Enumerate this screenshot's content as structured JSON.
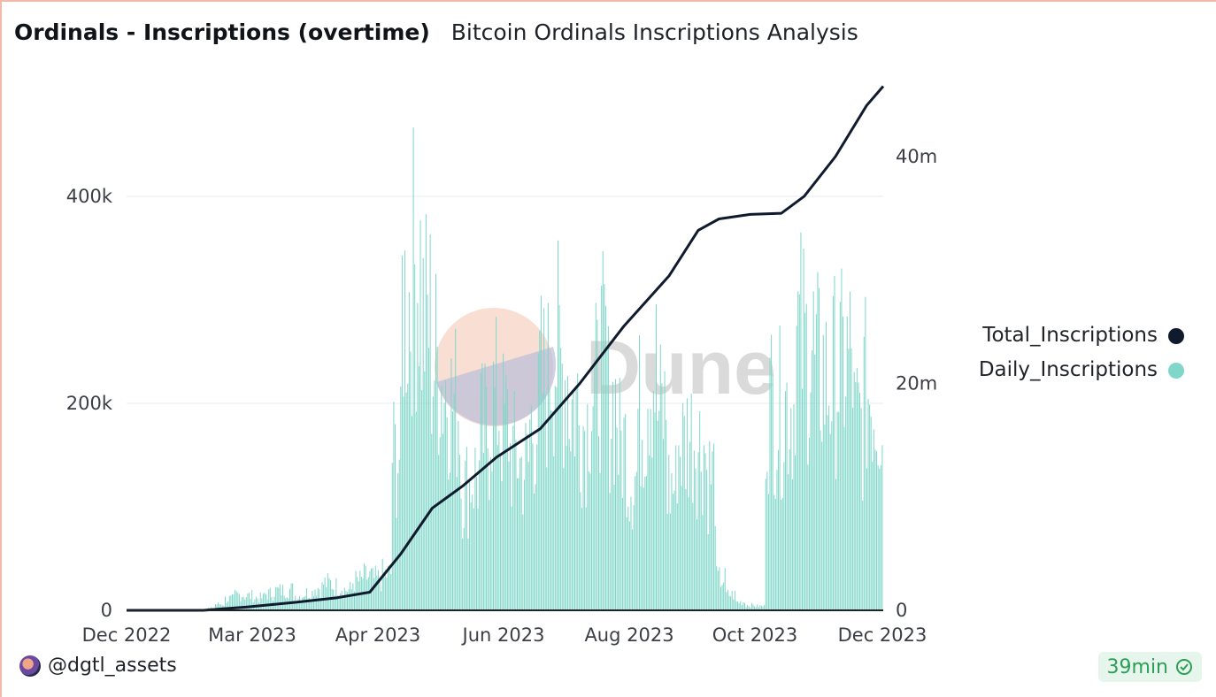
{
  "header": {
    "title": "Ordinals - Inscriptions (overtime)",
    "subtitle": "Bitcoin Ordinals Inscriptions Analysis"
  },
  "footer": {
    "author": "@dgtl_assets",
    "refresh_label": "39min"
  },
  "watermark": "Dune",
  "colors": {
    "total": "#0f1b2d",
    "daily": "#7fd6c9",
    "badge_text": "#2c9e55",
    "grid": "#e8ebee"
  },
  "legend": [
    {
      "label": "Total_Inscriptions",
      "color": "#0f1b2d"
    },
    {
      "label": "Daily_Inscriptions",
      "color": "#7fd6c9"
    }
  ],
  "chart_data": {
    "type": "bar+line",
    "title": "Ordinals - Inscriptions (overtime)",
    "x_ticks": [
      "Dec 2022",
      "Mar 2023",
      "Apr 2023",
      "Jun 2023",
      "Aug 2023",
      "Oct 2023",
      "Dec 2023"
    ],
    "y_left_ticks": [
      "0",
      "200k",
      "400k"
    ],
    "y_right_ticks": [
      "0",
      "20m",
      "40m"
    ],
    "y_left_range": [
      0,
      400000
    ],
    "y_right_range": [
      0,
      40000000
    ],
    "x_start": "2022-12-14",
    "x_end": "2023-12-13",
    "grid": true,
    "legend_position": "right",
    "series": [
      {
        "name": "Daily_Inscriptions",
        "type": "bar",
        "axis": "left",
        "weekly_avg": [
          0,
          0,
          0,
          0,
          0,
          0,
          0,
          0,
          2000,
          6000,
          11000,
          15000,
          14000,
          12000,
          16000,
          19000,
          20000,
          14000,
          17000,
          22000,
          26000,
          23000,
          20000,
          28000,
          32000,
          30000,
          35000,
          150000,
          300000,
          330000,
          280000,
          240000,
          220000,
          200000,
          120000,
          130000,
          170000,
          200000,
          180000,
          150000,
          140000,
          180000,
          220000,
          250000,
          230000,
          200000,
          180000,
          210000,
          240000,
          200000,
          160000,
          130000,
          190000,
          230000,
          190000,
          120000,
          160000,
          170000,
          160000,
          130000,
          30000,
          15000,
          8000,
          5000,
          4000,
          200000,
          190000,
          200000,
          260000,
          250000,
          230000,
          220000,
          230000,
          240000,
          180000,
          210000,
          200000
        ]
      },
      {
        "name": "Total_Inscriptions",
        "type": "line",
        "axis": "right",
        "keypoints": [
          {
            "date": "2022-12-14",
            "value": 0
          },
          {
            "date": "2023-01-20",
            "value": 0
          },
          {
            "date": "2023-02-10",
            "value": 300000
          },
          {
            "date": "2023-03-05",
            "value": 700000
          },
          {
            "date": "2023-03-25",
            "value": 1100000
          },
          {
            "date": "2023-04-10",
            "value": 1600000
          },
          {
            "date": "2023-04-25",
            "value": 5000000
          },
          {
            "date": "2023-05-10",
            "value": 9000000
          },
          {
            "date": "2023-05-25",
            "value": 11000000
          },
          {
            "date": "2023-06-10",
            "value": 13500000
          },
          {
            "date": "2023-07-01",
            "value": 16000000
          },
          {
            "date": "2023-07-20",
            "value": 20000000
          },
          {
            "date": "2023-08-10",
            "value": 25000000
          },
          {
            "date": "2023-09-01",
            "value": 29500000
          },
          {
            "date": "2023-09-15",
            "value": 33500000
          },
          {
            "date": "2023-09-25",
            "value": 34500000
          },
          {
            "date": "2023-10-10",
            "value": 34900000
          },
          {
            "date": "2023-10-25",
            "value": 35000000
          },
          {
            "date": "2023-11-05",
            "value": 36500000
          },
          {
            "date": "2023-11-20",
            "value": 40000000
          },
          {
            "date": "2023-12-05",
            "value": 44500000
          },
          {
            "date": "2023-12-13",
            "value": 46200000
          }
        ]
      }
    ]
  }
}
